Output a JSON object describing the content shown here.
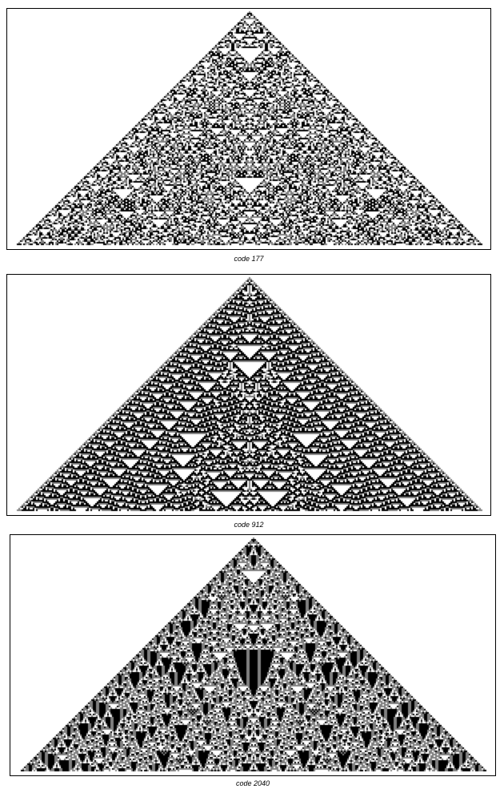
{
  "figures": [
    {
      "caption": "code 177",
      "rule_code": 177
    },
    {
      "caption": "code 912",
      "rule_code": 912
    },
    {
      "caption": "code 2040",
      "rule_code": 2040
    }
  ]
}
